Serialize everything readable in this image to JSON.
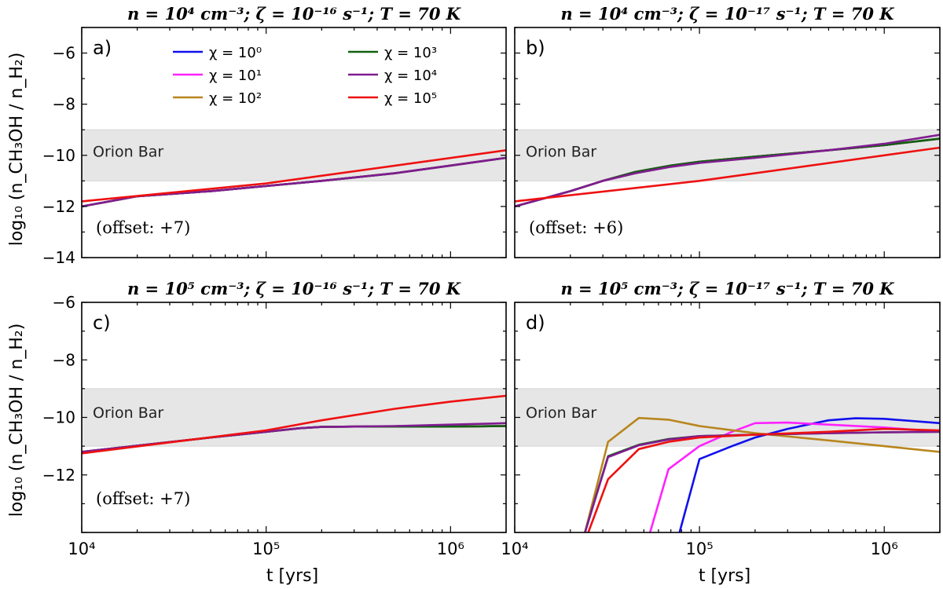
{
  "figure": {
    "ylabel": "log₁₀ (n_CH₃OH / n_H₂)",
    "xlabel": "t [yrs]",
    "band_label": "Orion Bar",
    "legend": [
      {
        "label": "χ = 10⁰",
        "color": "#1010ee"
      },
      {
        "label": "χ = 10³",
        "color": "#106010"
      },
      {
        "label": "χ = 10¹",
        "color": "#ff22ff"
      },
      {
        "label": "χ = 10⁴",
        "color": "#801c90"
      },
      {
        "label": "χ = 10²",
        "color": "#b8861e"
      },
      {
        "label": "χ = 10⁵",
        "color": "#ee1111"
      }
    ]
  },
  "chart_data": [
    {
      "type": "line",
      "panel": "a)",
      "title": "n = 10⁴ cm⁻³;   ζ = 10⁻¹⁶ s⁻¹;   T = 70 K",
      "offset_label": "(offset: +7)",
      "x_scale": "log",
      "xlim": [
        10000,
        2000000
      ],
      "ylim": [
        -14,
        -5
      ],
      "yticks": [
        -14,
        -12,
        -10,
        -8,
        -6
      ],
      "yticklabels": [
        "−14",
        "−12",
        "−10",
        "−8",
        "−6"
      ],
      "band": [
        -11,
        -9
      ],
      "series": [
        {
          "name": "χ = 10⁰",
          "color": "#1010ee",
          "x": [
            10000,
            20000,
            50000,
            100000,
            200000,
            500000,
            1000000,
            2000000
          ],
          "y": [
            -12.0,
            -11.6,
            -11.4,
            -11.2,
            -11.0,
            -10.7,
            -10.4,
            -10.1
          ]
        },
        {
          "name": "χ = 10¹",
          "color": "#ff22ff",
          "x": [
            10000,
            20000,
            50000,
            100000,
            200000,
            500000,
            1000000,
            2000000
          ],
          "y": [
            -12.0,
            -11.6,
            -11.4,
            -11.2,
            -11.0,
            -10.7,
            -10.4,
            -10.1
          ]
        },
        {
          "name": "χ = 10²",
          "color": "#b8861e",
          "x": [
            10000,
            20000,
            50000,
            100000,
            200000,
            500000,
            1000000,
            2000000
          ],
          "y": [
            -12.0,
            -11.6,
            -11.4,
            -11.2,
            -11.0,
            -10.7,
            -10.4,
            -10.1
          ]
        },
        {
          "name": "χ = 10³",
          "color": "#106010",
          "x": [
            10000,
            20000,
            50000,
            100000,
            200000,
            500000,
            1000000,
            2000000
          ],
          "y": [
            -12.0,
            -11.6,
            -11.4,
            -11.2,
            -11.0,
            -10.7,
            -10.4,
            -10.1
          ]
        },
        {
          "name": "χ = 10⁴",
          "color": "#801c90",
          "x": [
            10000,
            20000,
            50000,
            100000,
            200000,
            500000,
            1000000,
            2000000
          ],
          "y": [
            -12.0,
            -11.6,
            -11.4,
            -11.2,
            -11.0,
            -10.7,
            -10.4,
            -10.1
          ]
        },
        {
          "name": "χ = 10⁵",
          "color": "#ee1111",
          "x": [
            10000,
            100000,
            2000000
          ],
          "y": [
            -11.8,
            -11.1,
            -9.8
          ]
        }
      ]
    },
    {
      "type": "line",
      "panel": "b)",
      "title": "n = 10⁴ cm⁻³;   ζ = 10⁻¹⁷ s⁻¹;   T = 70 K",
      "offset_label": "(offset: +6)",
      "x_scale": "log",
      "xlim": [
        10000,
        2000000
      ],
      "ylim": [
        -14,
        -5
      ],
      "yticks": [
        -14,
        -12,
        -10,
        -8,
        -6
      ],
      "yticklabels": [],
      "band": [
        -11,
        -9
      ],
      "series": [
        {
          "name": "χ = 10⁰",
          "color": "#1010ee",
          "x": [
            10000,
            20000,
            30000,
            45000,
            70000,
            100000,
            200000,
            500000,
            1000000,
            2000000
          ],
          "y": [
            -12.0,
            -11.4,
            -11.0,
            -10.65,
            -10.4,
            -10.25,
            -10.05,
            -9.8,
            -9.6,
            -9.35
          ]
        },
        {
          "name": "χ = 10¹",
          "color": "#ff22ff",
          "x": [
            10000,
            20000,
            30000,
            45000,
            70000,
            100000,
            200000,
            500000,
            1000000,
            2000000
          ],
          "y": [
            -12.0,
            -11.4,
            -11.0,
            -10.65,
            -10.4,
            -10.25,
            -10.05,
            -9.8,
            -9.6,
            -9.35
          ]
        },
        {
          "name": "χ = 10²",
          "color": "#b8861e",
          "x": [
            10000,
            20000,
            30000,
            45000,
            70000,
            100000,
            200000,
            500000,
            1000000,
            2000000
          ],
          "y": [
            -12.0,
            -11.4,
            -11.0,
            -10.65,
            -10.4,
            -10.25,
            -10.05,
            -9.8,
            -9.6,
            -9.35
          ]
        },
        {
          "name": "χ = 10³",
          "color": "#106010",
          "x": [
            10000,
            20000,
            30000,
            45000,
            70000,
            100000,
            200000,
            500000,
            1000000,
            2000000
          ],
          "y": [
            -12.0,
            -11.4,
            -11.0,
            -10.65,
            -10.4,
            -10.25,
            -10.05,
            -9.8,
            -9.6,
            -9.35
          ]
        },
        {
          "name": "χ = 10⁴",
          "color": "#801c90",
          "x": [
            10000,
            20000,
            30000,
            45000,
            70000,
            100000,
            200000,
            500000,
            1000000,
            2000000
          ],
          "y": [
            -12.0,
            -11.4,
            -11.0,
            -10.7,
            -10.45,
            -10.3,
            -10.1,
            -9.8,
            -9.55,
            -9.2
          ]
        },
        {
          "name": "χ = 10⁵",
          "color": "#ee1111",
          "x": [
            10000,
            100000,
            2000000
          ],
          "y": [
            -11.8,
            -11.0,
            -9.7
          ]
        }
      ]
    },
    {
      "type": "line",
      "panel": "c)",
      "title": "n = 10⁵ cm⁻³;   ζ = 10⁻¹⁶ s⁻¹;   T = 70 K",
      "offset_label": "(offset: +7)",
      "x_scale": "log",
      "xlim": [
        10000,
        2000000
      ],
      "xticks": [
        10000,
        100000,
        1000000
      ],
      "xticklabels": [
        "10⁴",
        "10⁵",
        "10⁶"
      ],
      "ylim": [
        -14,
        -6
      ],
      "yticks": [
        -12,
        -10,
        -8,
        -6
      ],
      "yticklabels": [
        "−12",
        "−10",
        "−8",
        "−6"
      ],
      "band": [
        -11,
        -9
      ],
      "series": [
        {
          "name": "χ = 10⁰",
          "color": "#1010ee",
          "x": [
            10000,
            50000,
            100000,
            150000,
            200000,
            300000,
            500000,
            1000000,
            2000000
          ],
          "y": [
            -11.2,
            -10.7,
            -10.5,
            -10.38,
            -10.33,
            -10.32,
            -10.32,
            -10.32,
            -10.3
          ]
        },
        {
          "name": "χ = 10¹",
          "color": "#ff22ff",
          "x": [
            10000,
            50000,
            100000,
            150000,
            200000,
            300000,
            500000,
            1000000,
            2000000
          ],
          "y": [
            -11.2,
            -10.7,
            -10.5,
            -10.38,
            -10.33,
            -10.32,
            -10.32,
            -10.32,
            -10.3
          ]
        },
        {
          "name": "χ = 10²",
          "color": "#b8861e",
          "x": [
            10000,
            50000,
            100000,
            150000,
            200000,
            300000,
            500000,
            1000000,
            2000000
          ],
          "y": [
            -11.2,
            -10.7,
            -10.5,
            -10.38,
            -10.33,
            -10.32,
            -10.32,
            -10.32,
            -10.3
          ]
        },
        {
          "name": "χ = 10³",
          "color": "#106010",
          "x": [
            10000,
            50000,
            100000,
            150000,
            200000,
            300000,
            500000,
            1000000,
            2000000
          ],
          "y": [
            -11.2,
            -10.7,
            -10.5,
            -10.38,
            -10.33,
            -10.32,
            -10.32,
            -10.32,
            -10.3
          ]
        },
        {
          "name": "χ = 10⁴",
          "color": "#801c90",
          "x": [
            10000,
            50000,
            100000,
            150000,
            200000,
            300000,
            500000,
            1000000,
            2000000
          ],
          "y": [
            -11.2,
            -10.7,
            -10.5,
            -10.38,
            -10.33,
            -10.32,
            -10.3,
            -10.25,
            -10.2
          ]
        },
        {
          "name": "χ = 10⁵",
          "color": "#ee1111",
          "x": [
            10000,
            100000,
            200000,
            500000,
            1000000,
            2000000
          ],
          "y": [
            -11.25,
            -10.45,
            -10.1,
            -9.7,
            -9.45,
            -9.25
          ]
        }
      ]
    },
    {
      "type": "line",
      "panel": "d)",
      "title": "n = 10⁵ cm⁻³;   ζ = 10⁻¹⁷ s⁻¹;   T = 70 K",
      "offset_label": "",
      "x_scale": "log",
      "xlim": [
        10000,
        2000000
      ],
      "xticks": [
        10000,
        100000,
        1000000
      ],
      "xticklabels": [
        "10⁴",
        "10⁵",
        "10⁶"
      ],
      "ylim": [
        -14,
        -6
      ],
      "yticks": [
        -12,
        -10,
        -8,
        -6
      ],
      "yticklabels": [],
      "band": [
        -11,
        -9
      ],
      "series": [
        {
          "name": "χ = 10⁰",
          "color": "#1010ee",
          "x": [
            78000,
            100000,
            150000,
            200000,
            300000,
            500000,
            700000,
            1000000,
            2000000
          ],
          "y": [
            -14.0,
            -11.45,
            -11.0,
            -10.7,
            -10.4,
            -10.1,
            -10.03,
            -10.05,
            -10.2
          ]
        },
        {
          "name": "χ = 10¹",
          "color": "#ff22ff",
          "x": [
            54000,
            68000,
            100000,
            150000,
            200000,
            300000,
            500000,
            1000000,
            2000000
          ],
          "y": [
            -14.0,
            -11.8,
            -11.0,
            -10.5,
            -10.2,
            -10.18,
            -10.25,
            -10.35,
            -10.5
          ]
        },
        {
          "name": "χ = 10²",
          "color": "#b8861e",
          "x": [
            24000,
            32000,
            47000,
            68000,
            100000,
            200000,
            500000,
            1000000,
            2000000
          ],
          "y": [
            -14.0,
            -10.85,
            -10.02,
            -10.08,
            -10.3,
            -10.55,
            -10.8,
            -11.0,
            -11.2
          ]
        },
        {
          "name": "χ = 10³",
          "color": "#106010",
          "x": [
            24000,
            32000,
            47000,
            68000,
            100000,
            200000,
            500000,
            1000000,
            2000000
          ],
          "y": [
            -14.0,
            -11.35,
            -10.95,
            -10.75,
            -10.65,
            -10.6,
            -10.55,
            -10.52,
            -10.5
          ]
        },
        {
          "name": "χ = 10⁴",
          "color": "#801c90",
          "x": [
            24000,
            32000,
            47000,
            68000,
            100000,
            200000,
            500000,
            1000000,
            2000000
          ],
          "y": [
            -14.0,
            -11.38,
            -10.97,
            -10.77,
            -10.65,
            -10.6,
            -10.55,
            -10.52,
            -10.5
          ]
        },
        {
          "name": "χ = 10⁵",
          "color": "#ee1111",
          "x": [
            25000,
            32000,
            47000,
            68000,
            100000,
            200000,
            500000,
            1000000,
            2000000
          ],
          "y": [
            -14.0,
            -12.15,
            -11.1,
            -10.85,
            -10.7,
            -10.6,
            -10.5,
            -10.4,
            -10.45
          ]
        }
      ]
    }
  ]
}
